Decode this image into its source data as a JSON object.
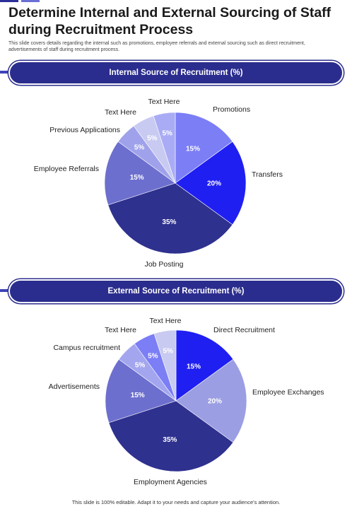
{
  "header": {
    "title": "Determine Internal and External Sourcing of Staff during Recruitment Process",
    "subtitle": "This slide covers details regarding the internal such as promotions, employee referrals and external sourcing such as direct recruitment, advertisements of staff during recruitment process."
  },
  "footer": {
    "text": "This slide is 100% editable. Adapt it to your needs and capture your audience's attention."
  },
  "colors": {
    "band": "#2b2d8e"
  },
  "chart_data": [
    {
      "type": "pie",
      "title": "Internal Source of Recruitment (%)",
      "categories": [
        "Promotions",
        "Transfers",
        "Job Posting",
        "Employee Referrals",
        "Previous Applications",
        "Text Here",
        "Text Here"
      ],
      "values": [
        15,
        20,
        35,
        15,
        5,
        5,
        5
      ],
      "labels": [
        "15%",
        "20%",
        "35%",
        "15%",
        "5%",
        "5%",
        "5%"
      ],
      "colors": [
        "#7b7ef5",
        "#1f1ff2",
        "#2f318f",
        "#6d6fce",
        "#9fa2ea",
        "#c9caf1",
        "#a9acf5"
      ]
    },
    {
      "type": "pie",
      "title": "External Source of Recruitment (%)",
      "categories": [
        "Direct Recruitment",
        "Employee Exchanges",
        "Employment Agencies",
        "Advertisements",
        "Campus recruitment",
        "Text Here",
        "Text Here"
      ],
      "values": [
        15,
        20,
        35,
        15,
        5,
        5,
        5
      ],
      "labels": [
        "15%",
        "20%",
        "35%",
        "15%",
        "5%",
        "5%",
        "5%"
      ],
      "colors": [
        "#1f1ff2",
        "#9b9ee2",
        "#2f318f",
        "#6d6fce",
        "#a3a6ee",
        "#7b7ef5",
        "#c9caf1"
      ]
    }
  ]
}
